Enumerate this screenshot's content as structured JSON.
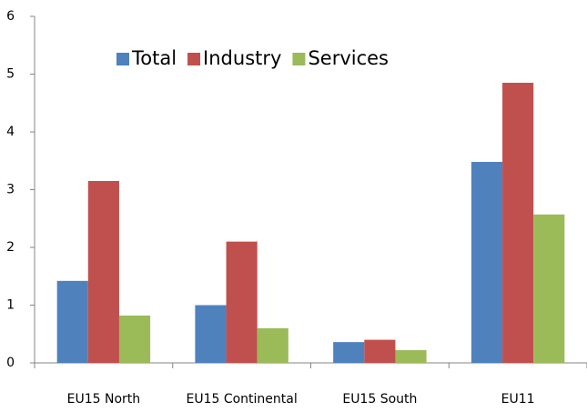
{
  "chart_data": {
    "type": "bar",
    "categories": [
      "EU15 North",
      "EU15 Continental",
      "EU15 South",
      "EU11"
    ],
    "series": [
      {
        "name": "Total",
        "color": "#4f81bd",
        "values": [
          1.42,
          1.0,
          0.36,
          3.48
        ]
      },
      {
        "name": "Industry",
        "color": "#c0504d",
        "values": [
          3.15,
          2.1,
          0.4,
          4.85
        ]
      },
      {
        "name": "Services",
        "color": "#9bbb59",
        "values": [
          0.82,
          0.6,
          0.22,
          2.57
        ]
      }
    ],
    "ylim": [
      0,
      6
    ],
    "yticks": [
      0,
      1,
      2,
      3,
      4,
      5,
      6
    ],
    "grid": false,
    "legend": "top"
  }
}
